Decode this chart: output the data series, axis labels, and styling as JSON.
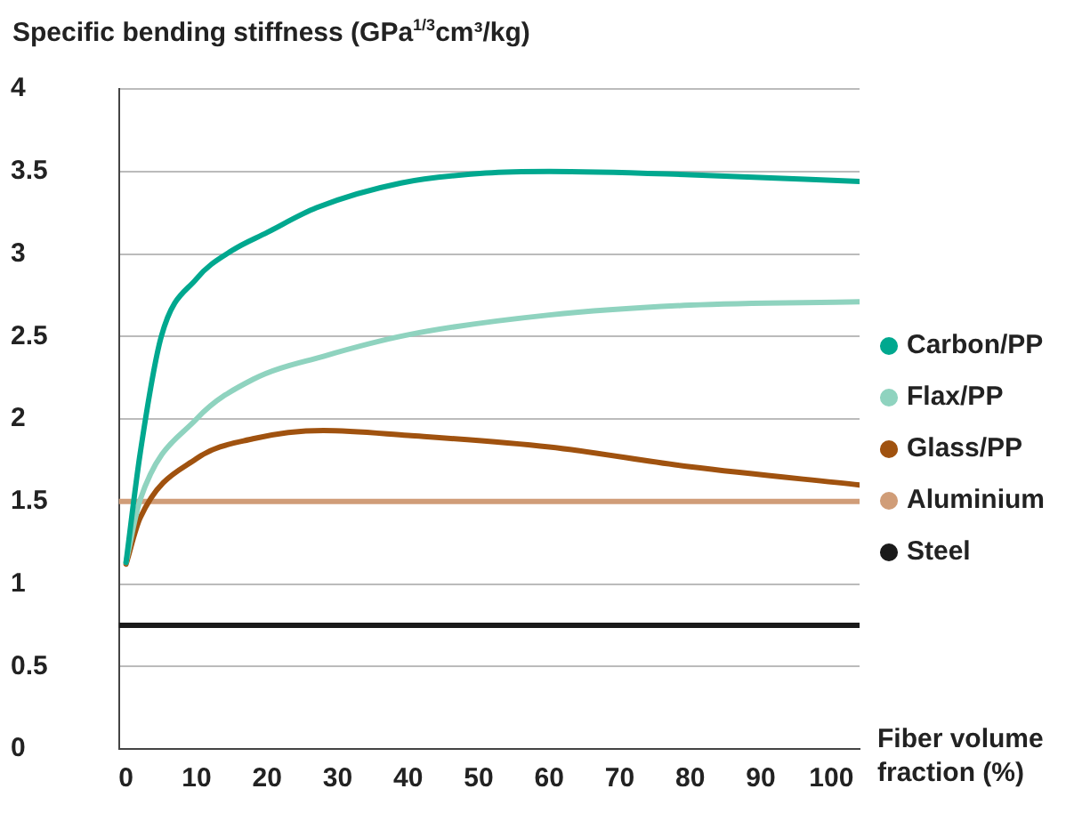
{
  "chart_data": {
    "type": "line",
    "ylabel": "Specific bending stiffness (GPa$^{1/3}$cm³/kg)",
    "xlabel": "Fiber volume fraction (%)",
    "xlim": [
      -1,
      104
    ],
    "xticks": [
      0,
      10,
      20,
      30,
      40,
      50,
      60,
      70,
      80,
      90,
      100
    ],
    "ylim": [
      0,
      4
    ],
    "yticks": [
      0,
      0.5,
      1,
      1.5,
      2,
      2.5,
      3,
      3.5,
      4
    ],
    "grid": "y",
    "legend": "right",
    "marker": "none",
    "line_style": "solid",
    "series": [
      {
        "name": "Carbon/PP",
        "color": "#00a88f",
        "x": [
          0,
          2,
          5,
          10,
          15,
          20,
          27,
          39,
          51,
          60,
          80,
          104
        ],
        "values": [
          1.13,
          1.79,
          2.5,
          2.85,
          3.02,
          3.13,
          3.28,
          3.43,
          3.49,
          3.5,
          3.48,
          3.44
        ]
      },
      {
        "name": "Flax/PP",
        "color": "#8fd3bf",
        "x": [
          0,
          2,
          10,
          18,
          28,
          40,
          60,
          80,
          104
        ],
        "values": [
          1.13,
          1.51,
          2.0,
          2.24,
          2.38,
          2.51,
          2.63,
          2.69,
          2.71
        ]
      },
      {
        "name": "Glass/PP",
        "color": "#a0520f",
        "x": [
          0,
          2,
          10,
          18,
          28,
          40,
          60,
          80,
          104
        ],
        "values": [
          1.12,
          1.4,
          1.76,
          1.88,
          1.93,
          1.9,
          1.83,
          1.71,
          1.6
        ]
      },
      {
        "name": "Aluminium",
        "color": "#d09d78",
        "x": [
          -1,
          104
        ],
        "values": [
          1.5,
          1.5
        ]
      },
      {
        "name": "Steel",
        "color": "#1a1a1a",
        "x": [
          -1,
          104
        ],
        "values": [
          0.75,
          0.75
        ]
      }
    ]
  }
}
